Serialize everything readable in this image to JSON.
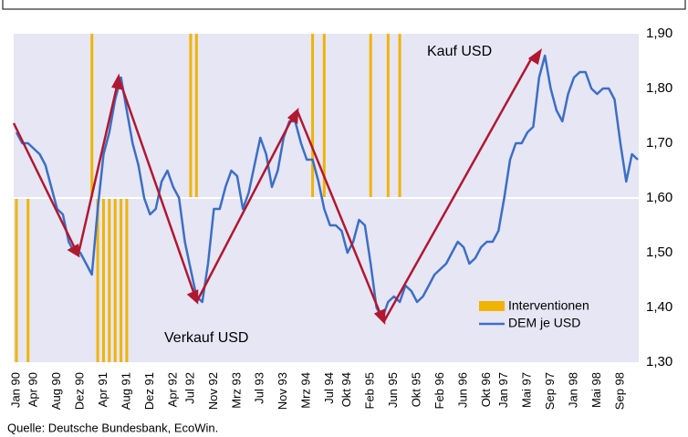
{
  "chart_data": {
    "type": "line",
    "annotations": [
      "Kauf USD",
      "Verkauf USD"
    ],
    "source": "Quelle: Deutsche Bundesbank, EcoWin.",
    "xlim": [
      "1990-01",
      "1998-12"
    ],
    "xticks": [
      {
        "value": "1990-01",
        "label": "Jan 90"
      },
      {
        "value": "1990-04",
        "label": "Apr 90"
      },
      {
        "value": "1990-08",
        "label": "Aug 90"
      },
      {
        "value": "1990-12",
        "label": "Dez 90"
      },
      {
        "value": "1991-04",
        "label": "Apr 91"
      },
      {
        "value": "1991-08",
        "label": "Aug 91"
      },
      {
        "value": "1991-12",
        "label": "Dez 91"
      },
      {
        "value": "1992-04",
        "label": "Apr 92"
      },
      {
        "value": "1992-07",
        "label": "Jul 92"
      },
      {
        "value": "1992-11",
        "label": "Nov 92"
      },
      {
        "value": "1993-03",
        "label": "Mrz 93"
      },
      {
        "value": "1993-07",
        "label": "Jul 93"
      },
      {
        "value": "1993-11",
        "label": "Nov 93"
      },
      {
        "value": "1994-03",
        "label": "Mrz 94"
      },
      {
        "value": "1994-07",
        "label": "Jul 94"
      },
      {
        "value": "1994-10",
        "label": "Okt 94"
      },
      {
        "value": "1995-02",
        "label": "Feb 95"
      },
      {
        "value": "1995-06",
        "label": "Jun 95"
      },
      {
        "value": "1995-10",
        "label": "Okt 95"
      },
      {
        "value": "1996-02",
        "label": "Feb 96"
      },
      {
        "value": "1996-06",
        "label": "Jun 96"
      },
      {
        "value": "1996-10",
        "label": "Okt 96"
      },
      {
        "value": "1997-01",
        "label": "Jan 97"
      },
      {
        "value": "1997-05",
        "label": "Mai 97"
      },
      {
        "value": "1997-09",
        "label": "Sep 97"
      },
      {
        "value": "1998-01",
        "label": "Jan 98"
      },
      {
        "value": "1998-05",
        "label": "Mai 98"
      },
      {
        "value": "1998-09",
        "label": "Sep 98"
      }
    ],
    "ylim": [
      1.3,
      1.9
    ],
    "yticks": [
      {
        "value": 1.9,
        "label": "1,90"
      },
      {
        "value": 1.8,
        "label": "1,80"
      },
      {
        "value": 1.7,
        "label": "1,70"
      },
      {
        "value": 1.6,
        "label": "1,60"
      },
      {
        "value": 1.5,
        "label": "1,50"
      },
      {
        "value": 1.4,
        "label": "1,40"
      },
      {
        "value": 1.3,
        "label": "1,30"
      }
    ],
    "threshold": 1.6,
    "x": [
      "1990-01",
      "1990-02",
      "1990-03",
      "1990-04",
      "1990-05",
      "1990-06",
      "1990-07",
      "1990-08",
      "1990-09",
      "1990-10",
      "1990-11",
      "1990-12",
      "1991-01",
      "1991-02",
      "1991-03",
      "1991-04",
      "1991-05",
      "1991-06",
      "1991-07",
      "1991-08",
      "1991-09",
      "1991-10",
      "1991-11",
      "1991-12",
      "1992-01",
      "1992-02",
      "1992-03",
      "1992-04",
      "1992-05",
      "1992-06",
      "1992-07",
      "1992-08",
      "1992-09",
      "1992-10",
      "1992-11",
      "1992-12",
      "1993-01",
      "1993-02",
      "1993-03",
      "1993-04",
      "1993-05",
      "1993-06",
      "1993-07",
      "1993-08",
      "1993-09",
      "1993-10",
      "1993-11",
      "1993-12",
      "1994-01",
      "1994-02",
      "1994-03",
      "1994-04",
      "1994-05",
      "1994-06",
      "1994-07",
      "1994-08",
      "1994-09",
      "1994-10",
      "1994-11",
      "1994-12",
      "1995-01",
      "1995-02",
      "1995-03",
      "1995-04",
      "1995-05",
      "1995-06",
      "1995-07",
      "1995-08",
      "1995-09",
      "1995-10",
      "1995-11",
      "1995-12",
      "1996-01",
      "1996-02",
      "1996-03",
      "1996-04",
      "1996-05",
      "1996-06",
      "1996-07",
      "1996-08",
      "1996-09",
      "1996-10",
      "1996-11",
      "1996-12",
      "1997-01",
      "1997-02",
      "1997-03",
      "1997-04",
      "1997-05",
      "1997-06",
      "1997-07",
      "1997-08",
      "1997-09",
      "1997-10",
      "1997-11",
      "1997-12",
      "1998-01",
      "1998-02",
      "1998-03",
      "1998-04",
      "1998-05",
      "1998-06",
      "1998-07",
      "1998-08",
      "1998-09",
      "1998-10",
      "1998-11",
      "1998-12"
    ],
    "series": [
      {
        "name": "DEM je USD",
        "color": "#3c6fc4",
        "values": [
          1.72,
          1.7,
          1.7,
          1.69,
          1.68,
          1.66,
          1.62,
          1.58,
          1.57,
          1.52,
          1.5,
          1.5,
          1.48,
          1.46,
          1.58,
          1.68,
          1.72,
          1.78,
          1.82,
          1.76,
          1.7,
          1.66,
          1.6,
          1.57,
          1.58,
          1.63,
          1.65,
          1.62,
          1.6,
          1.52,
          1.47,
          1.42,
          1.41,
          1.48,
          1.58,
          1.58,
          1.62,
          1.65,
          1.64,
          1.58,
          1.61,
          1.66,
          1.71,
          1.68,
          1.62,
          1.65,
          1.71,
          1.74,
          1.74,
          1.7,
          1.67,
          1.67,
          1.63,
          1.58,
          1.55,
          1.55,
          1.54,
          1.5,
          1.52,
          1.56,
          1.55,
          1.48,
          1.4,
          1.38,
          1.41,
          1.42,
          1.41,
          1.44,
          1.43,
          1.41,
          1.42,
          1.44,
          1.46,
          1.47,
          1.48,
          1.5,
          1.52,
          1.51,
          1.48,
          1.49,
          1.51,
          1.52,
          1.52,
          1.54,
          1.6,
          1.67,
          1.7,
          1.7,
          1.72,
          1.73,
          1.82,
          1.86,
          1.8,
          1.76,
          1.74,
          1.79,
          1.82,
          1.83,
          1.83,
          1.8,
          1.79,
          1.8,
          1.8,
          1.78,
          1.7,
          1.63,
          1.68,
          1.67
        ]
      }
    ],
    "interventions": {
      "name": "Interventionen",
      "color": "#f0b400",
      "above": [
        "1991-02",
        "1992-07",
        "1992-08",
        "1994-04",
        "1994-06",
        "1995-02",
        "1995-05",
        "1995-07"
      ],
      "below": [
        "1990-01",
        "1990-03",
        "1991-03",
        "1991-04",
        "1991-05",
        "1991-06",
        "1991-07",
        "1991-08"
      ]
    }
  }
}
